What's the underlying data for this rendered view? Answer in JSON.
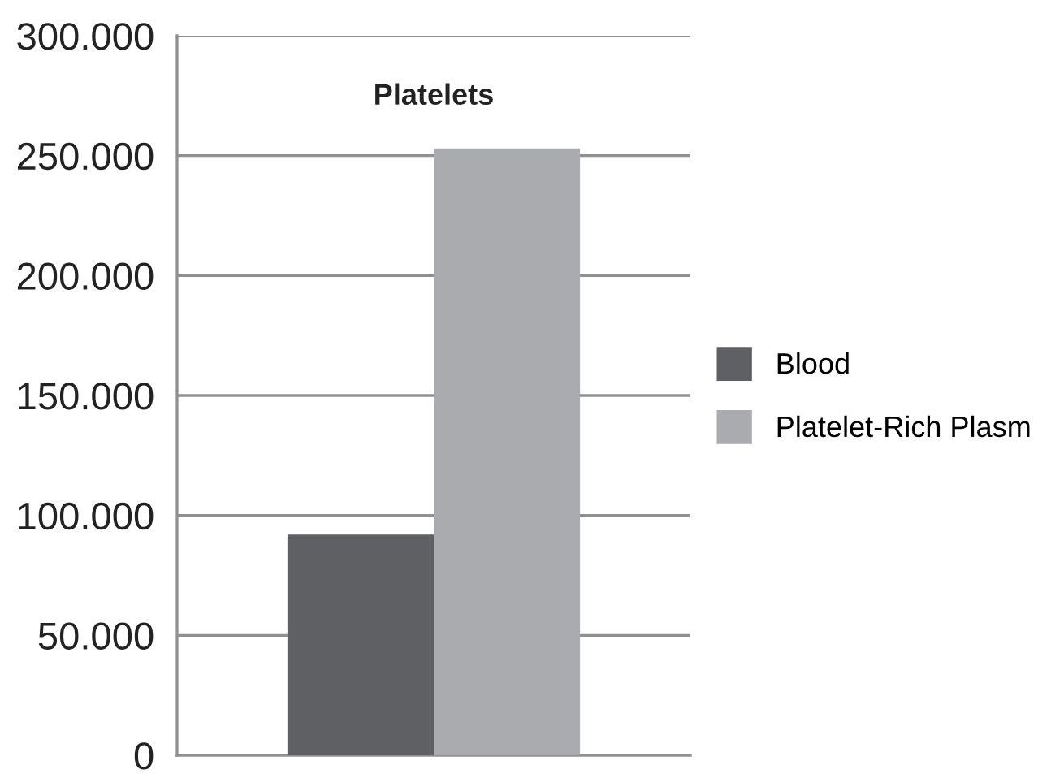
{
  "chart_data": {
    "type": "bar",
    "title": "Platelets",
    "categories": [
      null
    ],
    "series": [
      {
        "name": "Blood",
        "color": "#5f6064",
        "values": [
          92000
        ]
      },
      {
        "name": "Platelet-Rich Plasm",
        "color": "#aaabaf",
        "values": [
          253000
        ]
      }
    ],
    "ylim": [
      0,
      300000
    ],
    "yticks": [
      0,
      {
        "value": 50000,
        "label": "50.000"
      },
      {
        "value": 100000,
        "label": "100.000"
      },
      {
        "value": 150000,
        "label": "150.000"
      },
      {
        "value": 200000,
        "label": "200.000"
      },
      {
        "value": 250000,
        "label": "250.000"
      },
      {
        "value": 300000,
        "label": "300.000"
      }
    ],
    "grid": "y",
    "legend": "right",
    "tick_labels": "y"
  }
}
